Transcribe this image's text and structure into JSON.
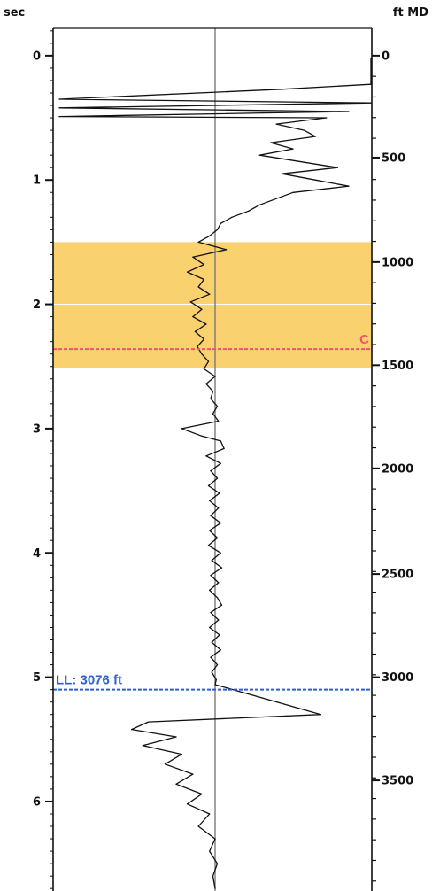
{
  "chart_data": {
    "type": "line",
    "title": "",
    "left_axis": {
      "label": "sec",
      "range": [
        -0.22,
        6.72
      ],
      "ticks": [
        0,
        1,
        2,
        3,
        4,
        5,
        6
      ],
      "tick_labels": [
        "0",
        "1",
        "2",
        "3",
        "4",
        "5",
        "6"
      ],
      "minor_step": 0.1
    },
    "right_axis": {
      "label": "ft MD",
      "range": [
        -0.22,
        6.72
      ],
      "ticks": [
        {
          "label": "0",
          "at": 0.0
        },
        {
          "label": "500",
          "at": 0.82
        },
        {
          "label": "1000",
          "at": 1.66
        },
        {
          "label": "1500",
          "at": 2.49
        },
        {
          "label": "2000",
          "at": 3.32
        },
        {
          "label": "2500",
          "at": 4.17
        },
        {
          "label": "3000",
          "at": 5.0
        },
        {
          "label": "3500",
          "at": 5.83
        }
      ],
      "minor_step": 0.166
    },
    "center_reference": 0.0,
    "highlight_band": {
      "from": 1.5,
      "to": 2.51,
      "color": "#f9c74f"
    },
    "band_midline": 2.0,
    "markers": [
      {
        "label": "C",
        "at": 2.36,
        "color": "#f0546d"
      },
      {
        "label": "LL: 3076 ft",
        "at": 5.1,
        "color": "#2a5fd6"
      }
    ],
    "series": [
      {
        "values": [
          [
            0.02,
            1.4
          ],
          [
            0.05,
            1.4
          ],
          [
            0.23,
            1.4
          ],
          [
            0.27,
            0.6
          ],
          [
            0.35,
            -1.4
          ],
          [
            0.38,
            1.4
          ],
          [
            0.42,
            -1.4
          ],
          [
            0.45,
            1.2
          ],
          [
            0.49,
            -1.4
          ],
          [
            0.5,
            1.0
          ],
          [
            0.55,
            0.55
          ],
          [
            0.6,
            0.8
          ],
          [
            0.65,
            0.9
          ],
          [
            0.7,
            0.5
          ],
          [
            0.75,
            0.7
          ],
          [
            0.8,
            0.4
          ],
          [
            0.85,
            0.75
          ],
          [
            0.9,
            1.1
          ],
          [
            0.95,
            0.6
          ],
          [
            1.0,
            0.9
          ],
          [
            1.05,
            1.2
          ],
          [
            1.1,
            0.7
          ],
          [
            1.15,
            0.55
          ],
          [
            1.2,
            0.4
          ],
          [
            1.25,
            0.3
          ],
          [
            1.3,
            0.15
          ],
          [
            1.35,
            0.05
          ],
          [
            1.4,
            0.02
          ],
          [
            1.45,
            -0.05
          ],
          [
            1.5,
            -0.15
          ],
          [
            1.56,
            0.1
          ],
          [
            1.62,
            -0.2
          ],
          [
            1.68,
            -0.1
          ],
          [
            1.74,
            -0.25
          ],
          [
            1.8,
            -0.1
          ],
          [
            1.86,
            -0.15
          ],
          [
            1.92,
            -0.05
          ],
          [
            1.98,
            -0.22
          ],
          [
            2.04,
            -0.12
          ],
          [
            2.1,
            -0.2
          ],
          [
            2.16,
            -0.08
          ],
          [
            2.22,
            -0.18
          ],
          [
            2.28,
            -0.1
          ],
          [
            2.34,
            -0.16
          ],
          [
            2.4,
            -0.12
          ],
          [
            2.46,
            -0.06
          ],
          [
            2.52,
            -0.1
          ],
          [
            2.58,
            0.0
          ],
          [
            2.64,
            -0.08
          ],
          [
            2.7,
            -0.02
          ],
          [
            2.76,
            -0.04
          ],
          [
            2.82,
            0.02
          ],
          [
            2.88,
            -0.02
          ],
          [
            2.94,
            0.03
          ],
          [
            3.0,
            -0.3
          ],
          [
            3.06,
            -0.12
          ],
          [
            3.1,
            0.05
          ],
          [
            3.16,
            0.08
          ],
          [
            3.22,
            -0.08
          ],
          [
            3.28,
            0.05
          ],
          [
            3.34,
            -0.04
          ],
          [
            3.4,
            0.02
          ],
          [
            3.46,
            -0.06
          ],
          [
            3.52,
            0.04
          ],
          [
            3.58,
            -0.05
          ],
          [
            3.64,
            0.03
          ],
          [
            3.7,
            -0.04
          ],
          [
            3.76,
            0.05
          ],
          [
            3.82,
            -0.05
          ],
          [
            3.88,
            0.02
          ],
          [
            3.94,
            -0.06
          ],
          [
            4.0,
            0.05
          ],
          [
            4.06,
            -0.03
          ],
          [
            4.12,
            0.06
          ],
          [
            4.18,
            -0.04
          ],
          [
            4.24,
            0.03
          ],
          [
            4.3,
            -0.05
          ],
          [
            4.36,
            0.02
          ],
          [
            4.42,
            0.06
          ],
          [
            4.48,
            -0.04
          ],
          [
            4.54,
            0.03
          ],
          [
            4.6,
            -0.05
          ],
          [
            4.66,
            0.04
          ],
          [
            4.72,
            -0.03
          ],
          [
            4.78,
            0.05
          ],
          [
            4.84,
            -0.04
          ],
          [
            4.9,
            0.02
          ],
          [
            4.96,
            -0.03
          ],
          [
            5.02,
            0.01
          ],
          [
            5.06,
            0.0
          ],
          [
            5.3,
            0.95
          ],
          [
            5.36,
            -0.6
          ],
          [
            5.42,
            -0.75
          ],
          [
            5.48,
            -0.35
          ],
          [
            5.55,
            -0.65
          ],
          [
            5.62,
            -0.3
          ],
          [
            5.7,
            -0.45
          ],
          [
            5.78,
            -0.2
          ],
          [
            5.86,
            -0.35
          ],
          [
            5.94,
            -0.12
          ],
          [
            6.02,
            -0.25
          ],
          [
            6.1,
            -0.05
          ],
          [
            6.2,
            -0.15
          ],
          [
            6.3,
            0.0
          ],
          [
            6.4,
            -0.05
          ],
          [
            6.5,
            0.02
          ],
          [
            6.6,
            -0.02
          ],
          [
            6.7,
            0.0
          ]
        ]
      }
    ],
    "grid": false,
    "legend": "none"
  }
}
